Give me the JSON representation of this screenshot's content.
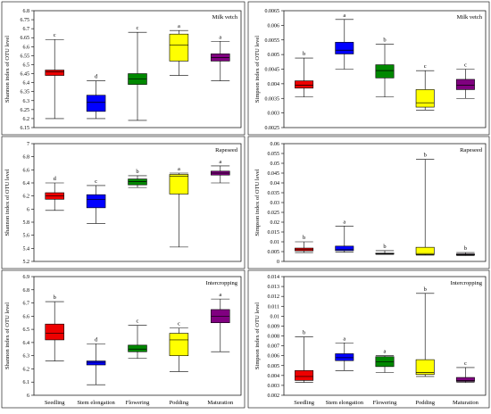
{
  "figure_title": "",
  "colors": [
    "#ee0000",
    "#0000ff",
    "#008800",
    "#ffff00",
    "#800080"
  ],
  "chart_data": [
    {
      "type": "box",
      "title": "Milk vetch",
      "ylabel": "Shannon index of OTU level",
      "xlabel": "",
      "ylim": [
        6.15,
        6.8
      ],
      "yticks": [
        "6.15",
        "6.2",
        "6.25",
        "6.3",
        "6.35",
        "6.4",
        "6.45",
        "6.5",
        "6.55",
        "6.6",
        "6.65",
        "6.7",
        "6.75",
        "6.8"
      ],
      "categories": [
        "Seedling",
        "Stem elongation",
        "Flowering",
        "Podding",
        "Maturation"
      ],
      "boxes": [
        {
          "min": 6.2,
          "q1": 6.44,
          "median": 6.46,
          "q3": 6.47,
          "max": 6.64,
          "letter": "c"
        },
        {
          "min": 6.2,
          "q1": 6.24,
          "median": 6.29,
          "q3": 6.33,
          "max": 6.41,
          "letter": "d"
        },
        {
          "min": 6.19,
          "q1": 6.39,
          "median": 6.42,
          "q3": 6.45,
          "max": 6.68,
          "letter": "c"
        },
        {
          "min": 6.44,
          "q1": 6.52,
          "median": 6.61,
          "q3": 6.67,
          "max": 6.69,
          "letter": "a"
        },
        {
          "min": 6.41,
          "q1": 6.52,
          "median": 6.54,
          "q3": 6.56,
          "max": 6.63,
          "letter": "a"
        }
      ]
    },
    {
      "type": "box",
      "title": "Milk vetch",
      "ylabel": "Simpson index of OTU level",
      "xlabel": "",
      "ylim": [
        0.0025,
        0.0065
      ],
      "yticks": [
        "0.0025",
        "0.003",
        "0.0035",
        "0.004",
        "0.0045",
        "0.005",
        "0.0055",
        "0.006",
        "0.0065"
      ],
      "categories": [
        "Seedling",
        "Stem elongation",
        "Flowering",
        "Podding",
        "Maturation"
      ],
      "boxes": [
        {
          "min": 0.00355,
          "q1": 0.00385,
          "median": 0.00395,
          "q3": 0.0041,
          "max": 0.00488,
          "letter": "b"
        },
        {
          "min": 0.0045,
          "q1": 0.00502,
          "median": 0.00515,
          "q3": 0.00542,
          "max": 0.0062,
          "letter": "a"
        },
        {
          "min": 0.00355,
          "q1": 0.0042,
          "median": 0.00445,
          "q3": 0.00465,
          "max": 0.00535,
          "letter": "b"
        },
        {
          "min": 0.0031,
          "q1": 0.0032,
          "median": 0.00335,
          "q3": 0.0038,
          "max": 0.00445,
          "letter": "c"
        },
        {
          "min": 0.0035,
          "q1": 0.0038,
          "median": 0.00395,
          "q3": 0.00415,
          "max": 0.0045,
          "letter": "c"
        }
      ]
    },
    {
      "type": "box",
      "title": "Rapeseed",
      "ylabel": "Shannon index of OTU level",
      "xlabel": "",
      "ylim": [
        5.2,
        7
      ],
      "yticks": [
        "5.2",
        "5.4",
        "5.6",
        "5.8",
        "6",
        "6.2",
        "6.4",
        "6.6",
        "6.8",
        "7"
      ],
      "categories": [
        "Seedling",
        "Stem elongation",
        "Flowering",
        "Podding",
        "Maturation"
      ],
      "boxes": [
        {
          "min": 5.98,
          "q1": 6.15,
          "median": 6.2,
          "q3": 6.25,
          "max": 6.4,
          "letter": "d"
        },
        {
          "min": 5.78,
          "q1": 6.02,
          "median": 6.15,
          "q3": 6.22,
          "max": 6.36,
          "letter": "c"
        },
        {
          "min": 6.33,
          "q1": 6.37,
          "median": 6.42,
          "q3": 6.46,
          "max": 6.51,
          "letter": "b"
        },
        {
          "min": 5.42,
          "q1": 6.23,
          "median": 6.5,
          "q3": 6.53,
          "max": 6.55,
          "letter": "a"
        },
        {
          "min": 6.4,
          "q1": 6.52,
          "median": 6.55,
          "q3": 6.58,
          "max": 6.66,
          "letter": "a"
        }
      ]
    },
    {
      "type": "box",
      "title": "Rapeseed",
      "ylabel": "Simpson index of OTU level",
      "xlabel": "",
      "ylim": [
        0,
        0.06
      ],
      "yticks": [
        "0",
        "0.005",
        "0.01",
        "0.015",
        "0.02",
        "0.025",
        "0.03",
        "0.035",
        "0.04",
        "0.045",
        "0.05",
        "0.055",
        "0.06"
      ],
      "categories": [
        "Seedling",
        "Stem elongation",
        "Flowering",
        "Podding",
        "Maturation"
      ],
      "boxes": [
        {
          "min": 0.0045,
          "q1": 0.0054,
          "median": 0.006,
          "q3": 0.0068,
          "max": 0.01,
          "letter": "b"
        },
        {
          "min": 0.0047,
          "q1": 0.0055,
          "median": 0.006,
          "q3": 0.0078,
          "max": 0.018,
          "letter": "a"
        },
        {
          "min": 0.0036,
          "q1": 0.0038,
          "median": 0.004,
          "q3": 0.0042,
          "max": 0.0055,
          "letter": "b"
        },
        {
          "min": 0.0032,
          "q1": 0.0035,
          "median": 0.004,
          "q3": 0.0072,
          "max": 0.052,
          "letter": "b"
        },
        {
          "min": 0.003,
          "q1": 0.0033,
          "median": 0.0035,
          "q3": 0.0038,
          "max": 0.0045,
          "letter": "b"
        }
      ]
    },
    {
      "type": "box",
      "title": "Intercropping",
      "ylabel": "Shannon index of OTU level",
      "xlabel": "",
      "ylim": [
        6,
        6.9
      ],
      "yticks": [
        "6",
        "6.1",
        "6.2",
        "6.3",
        "6.4",
        "6.5",
        "6.6",
        "6.7",
        "6.8",
        "6.9"
      ],
      "categories": [
        "Seedling",
        "Stem elongation",
        "Flowering",
        "Podding",
        "Maturation"
      ],
      "boxes": [
        {
          "min": 6.26,
          "q1": 6.42,
          "median": 6.47,
          "q3": 6.54,
          "max": 6.71,
          "letter": "b"
        },
        {
          "min": 6.08,
          "q1": 6.23,
          "median": 6.25,
          "q3": 6.26,
          "max": 6.39,
          "letter": "d"
        },
        {
          "min": 6.28,
          "q1": 6.33,
          "median": 6.35,
          "q3": 6.38,
          "max": 6.53,
          "letter": "c"
        },
        {
          "min": 6.18,
          "q1": 6.3,
          "median": 6.42,
          "q3": 6.47,
          "max": 6.51,
          "letter": "c"
        },
        {
          "min": 6.33,
          "q1": 6.55,
          "median": 6.6,
          "q3": 6.65,
          "max": 6.73,
          "letter": "a"
        }
      ]
    },
    {
      "type": "box",
      "title": "Intercropping",
      "ylabel": "Simpson index of OTU level",
      "xlabel": "",
      "ylim": [
        0.002,
        0.014
      ],
      "yticks": [
        "0.002",
        "0.003",
        "0.004",
        "0.005",
        "0.006",
        "0.007",
        "0.008",
        "0.009",
        "0.01",
        "0.011",
        "0.012",
        "0.013",
        "0.014"
      ],
      "categories": [
        "Seedling",
        "Stem elongation",
        "Flowering",
        "Podding",
        "Maturation"
      ],
      "boxes": [
        {
          "min": 0.0033,
          "q1": 0.0035,
          "median": 0.0039,
          "q3": 0.0045,
          "max": 0.0079,
          "letter": "b"
        },
        {
          "min": 0.0045,
          "q1": 0.0055,
          "median": 0.0058,
          "q3": 0.0062,
          "max": 0.0073,
          "letter": "a"
        },
        {
          "min": 0.0043,
          "q1": 0.0049,
          "median": 0.0054,
          "q3": 0.0059,
          "max": 0.006,
          "letter": "a"
        },
        {
          "min": 0.0039,
          "q1": 0.0041,
          "median": 0.0043,
          "q3": 0.0056,
          "max": 0.0123,
          "letter": "b"
        },
        {
          "min": 0.0033,
          "q1": 0.0034,
          "median": 0.0035,
          "q3": 0.0038,
          "max": 0.0048,
          "letter": "c"
        }
      ]
    }
  ]
}
